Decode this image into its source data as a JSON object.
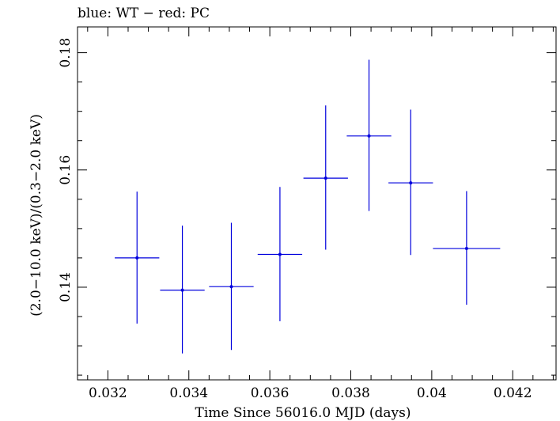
{
  "chart_data": {
    "type": "scatter",
    "title": "blue: WT − red: PC",
    "xlabel": "Time Since 56016.0 MJD (days)",
    "ylabel": "(2.0−10.0 keV)/(0.3−2.0 keV)",
    "xlim": [
      0.03125,
      0.04307
    ],
    "ylim": [
      0.1242,
      0.1844
    ],
    "x_ticks": [
      "0.032",
      "0.034",
      "0.036",
      "0.038",
      "0.04",
      "0.042"
    ],
    "x_tick_values": [
      0.032,
      0.034,
      0.036,
      0.038,
      0.04,
      0.042
    ],
    "y_ticks": [
      "0.14",
      "0.16",
      "0.18"
    ],
    "y_tick_values": [
      0.14,
      0.16,
      0.18
    ],
    "grid": false,
    "color": "#0000dd",
    "series": [
      {
        "color": "#0000dd",
        "points": [
          {
            "x": 0.03272,
            "xerr": 0.00055,
            "y": 0.145,
            "yerr_up": 0.0113,
            "yerr_down": 0.0112
          },
          {
            "x": 0.03384,
            "xerr": 0.00055,
            "y": 0.1395,
            "yerr_up": 0.011,
            "yerr_down": 0.0108
          },
          {
            "x": 0.03505,
            "xerr": 0.00055,
            "y": 0.1401,
            "yerr_up": 0.0109,
            "yerr_down": 0.0108
          },
          {
            "x": 0.03625,
            "xerr": 0.00055,
            "y": 0.1456,
            "yerr_up": 0.0115,
            "yerr_down": 0.0114
          },
          {
            "x": 0.03738,
            "xerr": 0.00055,
            "y": 0.1586,
            "yerr_up": 0.0124,
            "yerr_down": 0.0122
          },
          {
            "x": 0.03845,
            "xerr": 0.00055,
            "y": 0.1658,
            "yerr_up": 0.013,
            "yerr_down": 0.0128
          },
          {
            "x": 0.03948,
            "xerr": 0.00055,
            "y": 0.1578,
            "yerr_up": 0.0125,
            "yerr_down": 0.0123
          },
          {
            "x": 0.04086,
            "xerr": 0.00083,
            "y": 0.1466,
            "yerr_up": 0.0098,
            "yerr_down": 0.0096
          }
        ]
      }
    ]
  }
}
